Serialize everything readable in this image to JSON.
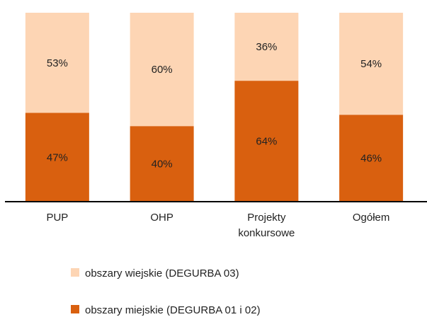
{
  "chart_data": {
    "type": "stacked_bar",
    "categories": [
      "PUP",
      "OHP",
      "Projekty konkursowe",
      "Ogółem"
    ],
    "series": [
      {
        "name": "obszary miejskie (DEGURBA 01 i 02)",
        "color": "#d9600f",
        "values": [
          47,
          40,
          64,
          46
        ],
        "value_labels": [
          "47%",
          "40%",
          "64%",
          "46%"
        ]
      },
      {
        "name": "obszary wiejskie (DEGURBA 03)",
        "color": "#fdd5b4",
        "values": [
          53,
          60,
          36,
          54
        ],
        "value_labels": [
          "53%",
          "60%",
          "36%",
          "54%"
        ]
      }
    ],
    "ylim": [
      0,
      100
    ]
  }
}
